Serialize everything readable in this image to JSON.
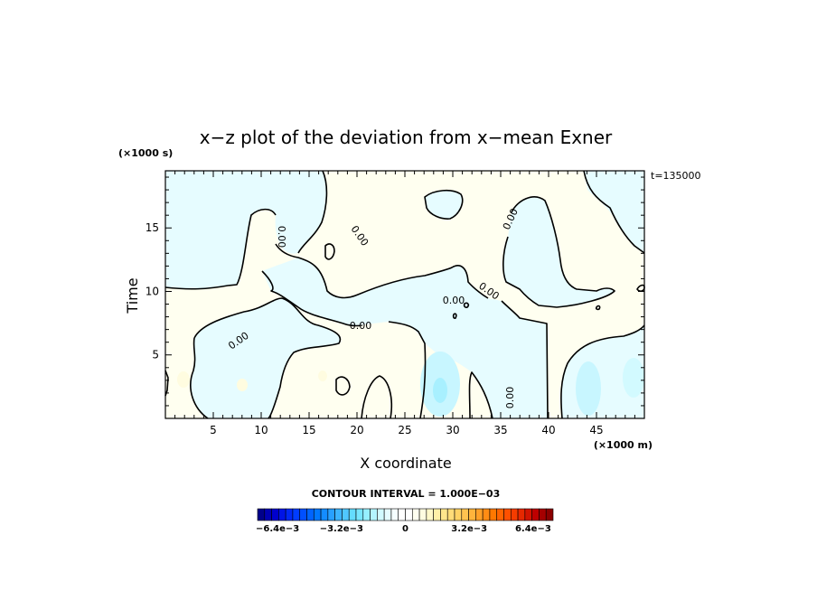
{
  "chart_data": {
    "type": "contour",
    "title": "x−z plot of the deviation from x−mean Exner",
    "xlabel": "X coordinate",
    "ylabel": "Time",
    "x_unit": "(×1000 m)",
    "y_unit": "(×1000 s)",
    "time_label": "t=135000",
    "xlim": [
      0,
      50
    ],
    "ylim": [
      0,
      19.5
    ],
    "x_ticks": [
      5,
      10,
      15,
      20,
      25,
      30,
      35,
      40,
      45
    ],
    "y_ticks": [
      5,
      10,
      15
    ],
    "contour_interval_text": "CONTOUR INTERVAL = 1.000E−03",
    "contour_labels": [
      "0.00",
      "0.00",
      "0.00",
      "0.00",
      "0.00",
      "0.00",
      "0.00",
      "0.00"
    ],
    "colorbar": {
      "tick_labels": [
        "−6.4e−3",
        "−3.2e−3",
        "0",
        "3.2e−3",
        "6.4e−3"
      ],
      "tick_values": [
        -0.0064,
        -0.0032,
        0,
        0.0032,
        0.0064
      ],
      "range": [
        -0.0074,
        0.0074
      ],
      "colors": [
        "#00008b",
        "#0000b4",
        "#0000cd",
        "#0014e6",
        "#0028f5",
        "#003cff",
        "#0050ff",
        "#0064ff",
        "#0078ff",
        "#148cff",
        "#28a0ff",
        "#3cb4ff",
        "#50c8ff",
        "#64dcff",
        "#78e6ff",
        "#96f0ff",
        "#b4f5ff",
        "#d2faff",
        "#e6fcff",
        "#f5feff",
        "#ffffff",
        "#ffffff",
        "#fffff0",
        "#fffce0",
        "#fff8c8",
        "#fff0a8",
        "#ffe68c",
        "#ffdc78",
        "#ffd264",
        "#ffc350",
        "#ffb43c",
        "#ffa028",
        "#ff8c14",
        "#ff7800",
        "#ff6400",
        "#ff5000",
        "#f53c00",
        "#e62800",
        "#d21400",
        "#be0000",
        "#a50000",
        "#8b0000"
      ]
    }
  }
}
